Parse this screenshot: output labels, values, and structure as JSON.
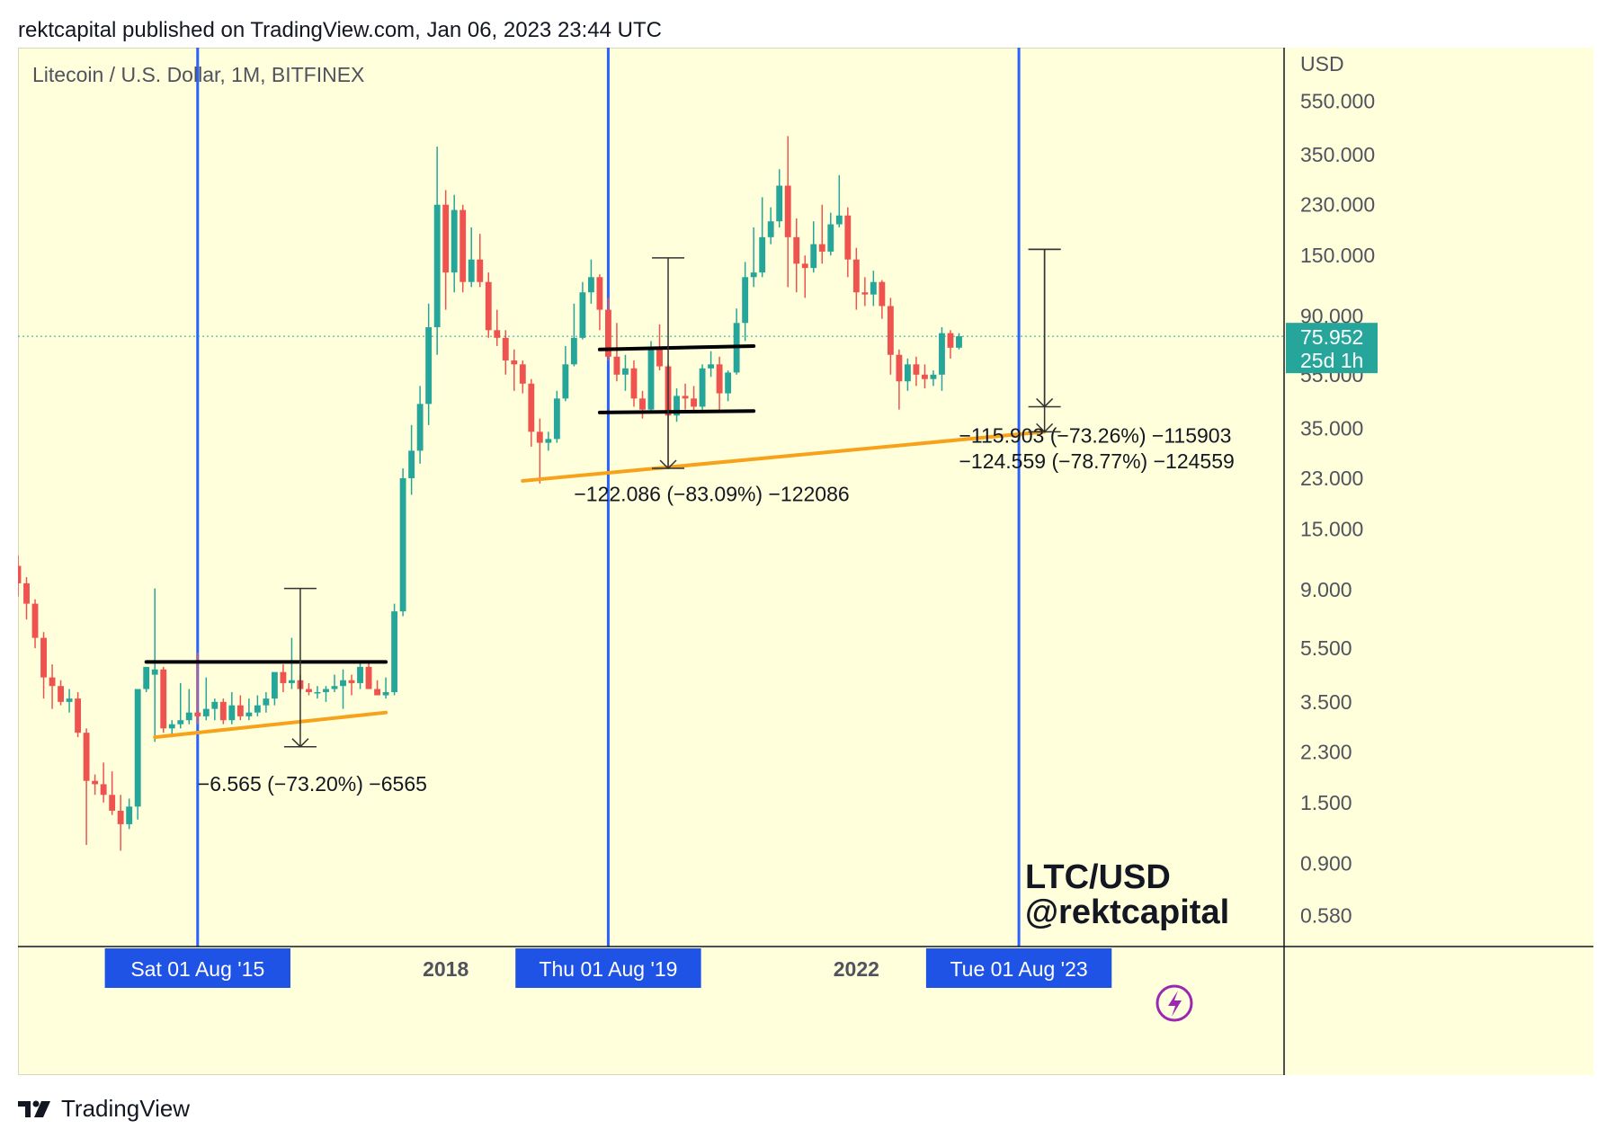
{
  "header": {
    "text": "rektcapital published on TradingView.com, Jan 06, 2023 23:44 UTC"
  },
  "footer": {
    "brand": "TradingView",
    "logo_icon": "tradingview-logo-icon"
  },
  "colors": {
    "up": "#26a69a",
    "down": "#ef5350",
    "background": "#ffffdb",
    "vline": "#2962ff",
    "trend": "#f7a21b",
    "label": "#1e53e5",
    "price_badge": "#26a69a"
  },
  "chart_data": {
    "type": "candlestick",
    "symbol": "Litecoin / U.S. Dollar, 1M, BITFINEX",
    "currency": "USD",
    "y_scale": "log",
    "y_range": [
      0.5,
      800
    ],
    "y_ticks": [
      "550.000",
      "350.000",
      "230.000",
      "150.000",
      "90.000",
      "55.000",
      "35.000",
      "23.000",
      "15.000",
      "9.000",
      "5.500",
      "3.500",
      "2.300",
      "1.500",
      "0.900",
      "0.580"
    ],
    "x_range_months": [
      "2013-11",
      "2026-03"
    ],
    "x_labels": [
      {
        "date": "2015-08",
        "text": "Sat 01 Aug '15",
        "highlight": true
      },
      {
        "date": "2018-01",
        "text": "2018",
        "highlight": false
      },
      {
        "date": "2019-08",
        "text": "Thu 01 Aug '19",
        "highlight": true
      },
      {
        "date": "2022-01",
        "text": "2022",
        "highlight": false
      },
      {
        "date": "2023-08",
        "text": "Tue 01 Aug '23",
        "highlight": true
      }
    ],
    "last_price": {
      "value": 75.952,
      "label": "75.952",
      "countdown": "25d 1h"
    },
    "vertical_lines": [
      "2015-08",
      "2019-08",
      "2023-08"
    ],
    "candles": [
      {
        "t": "2013-11",
        "o": 11,
        "h": 12,
        "l": 8.5,
        "c": 9.5
      },
      {
        "t": "2013-12",
        "o": 9.5,
        "h": 10,
        "l": 7,
        "c": 8
      },
      {
        "t": "2014-01",
        "o": 8,
        "h": 8.3,
        "l": 5.5,
        "c": 6
      },
      {
        "t": "2014-02",
        "o": 6,
        "h": 6.3,
        "l": 3.6,
        "c": 4.3
      },
      {
        "t": "2014-03",
        "o": 4.3,
        "h": 4.8,
        "l": 3.3,
        "c": 4
      },
      {
        "t": "2014-04",
        "o": 4,
        "h": 4.2,
        "l": 3.4,
        "c": 3.5
      },
      {
        "t": "2014-05",
        "o": 3.5,
        "h": 3.9,
        "l": 3.2,
        "c": 3.6
      },
      {
        "t": "2014-06",
        "o": 3.6,
        "h": 3.8,
        "l": 2.6,
        "c": 2.7
      },
      {
        "t": "2014-07",
        "o": 2.7,
        "h": 2.8,
        "l": 1.05,
        "c": 1.8
      },
      {
        "t": "2014-08",
        "o": 1.8,
        "h": 1.9,
        "l": 1.6,
        "c": 1.75
      },
      {
        "t": "2014-09",
        "o": 1.75,
        "h": 2.1,
        "l": 1.5,
        "c": 1.6
      },
      {
        "t": "2014-10",
        "o": 1.6,
        "h": 1.95,
        "l": 1.35,
        "c": 1.4
      },
      {
        "t": "2014-11",
        "o": 1.4,
        "h": 1.6,
        "l": 1.0,
        "c": 1.25
      },
      {
        "t": "2014-12",
        "o": 1.25,
        "h": 1.55,
        "l": 1.2,
        "c": 1.45
      },
      {
        "t": "2015-01",
        "o": 1.45,
        "h": 1.9,
        "l": 1.3,
        "c": 3.9
      },
      {
        "t": "2015-02",
        "o": 3.9,
        "h": 4.2,
        "l": 3.8,
        "c": 4.7
      },
      {
        "t": "2015-03",
        "o": 4.4,
        "h": 9.1,
        "l": 2.5,
        "c": 4.6
      },
      {
        "t": "2015-04",
        "o": 4.6,
        "h": 4.7,
        "l": 2.7,
        "c": 2.8
      },
      {
        "t": "2015-05",
        "o": 2.8,
        "h": 3.0,
        "l": 2.6,
        "c": 2.9
      },
      {
        "t": "2015-06",
        "o": 2.9,
        "h": 4.1,
        "l": 2.8,
        "c": 3.0
      },
      {
        "t": "2015-07",
        "o": 3.0,
        "h": 3.9,
        "l": 2.9,
        "c": 3.2
      },
      {
        "t": "2015-08",
        "o": 3.2,
        "h": 5.3,
        "l": 2.9,
        "c": 3.1
      },
      {
        "t": "2015-09",
        "o": 3.1,
        "h": 4.3,
        "l": 3.0,
        "c": 3.3
      },
      {
        "t": "2015-10",
        "o": 3.3,
        "h": 3.6,
        "l": 3.0,
        "c": 3.5
      },
      {
        "t": "2015-11",
        "o": 3.5,
        "h": 3.6,
        "l": 2.9,
        "c": 3.0
      },
      {
        "t": "2015-12",
        "o": 3.0,
        "h": 3.8,
        "l": 2.9,
        "c": 3.4
      },
      {
        "t": "2016-01",
        "o": 3.4,
        "h": 3.7,
        "l": 3.0,
        "c": 3.1
      },
      {
        "t": "2016-02",
        "o": 3.1,
        "h": 3.6,
        "l": 3.0,
        "c": 3.2
      },
      {
        "t": "2016-03",
        "o": 3.2,
        "h": 3.7,
        "l": 3.1,
        "c": 3.4
      },
      {
        "t": "2016-04",
        "o": 3.4,
        "h": 3.8,
        "l": 3.2,
        "c": 3.6
      },
      {
        "t": "2016-05",
        "o": 3.6,
        "h": 4.3,
        "l": 3.4,
        "c": 4.5
      },
      {
        "t": "2016-06",
        "o": 4.5,
        "h": 4.8,
        "l": 3.8,
        "c": 4.1
      },
      {
        "t": "2016-07",
        "o": 4.1,
        "h": 6.0,
        "l": 3.9,
        "c": 4.2
      },
      {
        "t": "2016-08",
        "o": 4.2,
        "h": 4.4,
        "l": 3.8,
        "c": 3.9
      },
      {
        "t": "2016-09",
        "o": 3.9,
        "h": 4.1,
        "l": 3.7,
        "c": 3.8
      },
      {
        "t": "2016-10",
        "o": 3.8,
        "h": 4.0,
        "l": 3.6,
        "c": 3.8
      },
      {
        "t": "2016-11",
        "o": 3.8,
        "h": 4.0,
        "l": 3.5,
        "c": 3.9
      },
      {
        "t": "2016-12",
        "o": 3.9,
        "h": 4.4,
        "l": 3.8,
        "c": 4.0
      },
      {
        "t": "2017-01",
        "o": 4.0,
        "h": 4.6,
        "l": 3.3,
        "c": 4.2
      },
      {
        "t": "2017-02",
        "o": 4.2,
        "h": 4.4,
        "l": 3.7,
        "c": 4.1
      },
      {
        "t": "2017-03",
        "o": 4.1,
        "h": 4.9,
        "l": 3.9,
        "c": 4.7
      },
      {
        "t": "2017-04",
        "o": 4.7,
        "h": 4.9,
        "l": 3.9,
        "c": 3.9
      },
      {
        "t": "2017-05",
        "o": 3.9,
        "h": 4.2,
        "l": 3.8,
        "c": 3.7
      },
      {
        "t": "2017-06",
        "o": 3.7,
        "h": 4.3,
        "l": 3.6,
        "c": 3.8
      },
      {
        "t": "2017-07",
        "o": 3.8,
        "h": 8.0,
        "l": 3.7,
        "c": 7.5
      },
      {
        "t": "2017-08",
        "o": 7.5,
        "h": 25,
        "l": 7.2,
        "c": 23
      },
      {
        "t": "2017-09",
        "o": 23,
        "h": 36,
        "l": 20,
        "c": 29
      },
      {
        "t": "2017-10",
        "o": 29,
        "h": 50,
        "l": 26,
        "c": 43
      },
      {
        "t": "2017-11",
        "o": 43,
        "h": 100,
        "l": 36,
        "c": 82
      },
      {
        "t": "2017-12",
        "o": 82,
        "h": 375,
        "l": 65,
        "c": 230
      },
      {
        "t": "2018-01",
        "o": 230,
        "h": 260,
        "l": 95,
        "c": 130
      },
      {
        "t": "2018-02",
        "o": 130,
        "h": 250,
        "l": 110,
        "c": 220
      },
      {
        "t": "2018-03",
        "o": 220,
        "h": 230,
        "l": 110,
        "c": 120
      },
      {
        "t": "2018-04",
        "o": 120,
        "h": 190,
        "l": 115,
        "c": 145
      },
      {
        "t": "2018-05",
        "o": 145,
        "h": 180,
        "l": 115,
        "c": 120
      },
      {
        "t": "2018-06",
        "o": 120,
        "h": 130,
        "l": 75,
        "c": 80
      },
      {
        "t": "2018-07",
        "o": 80,
        "h": 95,
        "l": 70,
        "c": 75
      },
      {
        "t": "2018-08",
        "o": 75,
        "h": 80,
        "l": 55,
        "c": 62
      },
      {
        "t": "2018-09",
        "o": 62,
        "h": 68,
        "l": 48,
        "c": 60
      },
      {
        "t": "2018-10",
        "o": 60,
        "h": 62,
        "l": 47,
        "c": 51
      },
      {
        "t": "2018-11",
        "o": 51,
        "h": 53,
        "l": 30,
        "c": 34
      },
      {
        "t": "2018-12",
        "o": 34,
        "h": 38,
        "l": 22,
        "c": 31
      },
      {
        "t": "2019-01",
        "o": 31,
        "h": 34,
        "l": 29,
        "c": 32
      },
      {
        "t": "2019-02",
        "o": 32,
        "h": 48,
        "l": 31,
        "c": 45
      },
      {
        "t": "2019-03",
        "o": 45,
        "h": 70,
        "l": 44,
        "c": 60
      },
      {
        "t": "2019-04",
        "o": 60,
        "h": 100,
        "l": 59,
        "c": 75
      },
      {
        "t": "2019-05",
        "o": 75,
        "h": 120,
        "l": 74,
        "c": 110
      },
      {
        "t": "2019-06",
        "o": 110,
        "h": 145,
        "l": 100,
        "c": 125
      },
      {
        "t": "2019-07",
        "o": 125,
        "h": 128,
        "l": 80,
        "c": 95
      },
      {
        "t": "2019-08",
        "o": 95,
        "h": 105,
        "l": 62,
        "c": 64
      },
      {
        "t": "2019-09",
        "o": 64,
        "h": 85,
        "l": 52,
        "c": 55
      },
      {
        "t": "2019-10",
        "o": 55,
        "h": 65,
        "l": 48,
        "c": 58
      },
      {
        "t": "2019-11",
        "o": 58,
        "h": 62,
        "l": 42,
        "c": 45
      },
      {
        "t": "2019-12",
        "o": 45,
        "h": 48,
        "l": 38,
        "c": 41
      },
      {
        "t": "2020-01",
        "o": 41,
        "h": 73,
        "l": 40,
        "c": 68
      },
      {
        "t": "2020-02",
        "o": 68,
        "h": 84,
        "l": 57,
        "c": 59
      },
      {
        "t": "2020-03",
        "o": 59,
        "h": 60,
        "l": 25,
        "c": 39
      },
      {
        "t": "2020-04",
        "o": 39,
        "h": 49,
        "l": 37,
        "c": 46
      },
      {
        "t": "2020-05",
        "o": 46,
        "h": 51,
        "l": 41,
        "c": 45
      },
      {
        "t": "2020-06",
        "o": 45,
        "h": 50,
        "l": 40,
        "c": 42
      },
      {
        "t": "2020-07",
        "o": 42,
        "h": 60,
        "l": 41,
        "c": 58
      },
      {
        "t": "2020-08",
        "o": 58,
        "h": 67,
        "l": 54,
        "c": 60
      },
      {
        "t": "2020-09",
        "o": 60,
        "h": 64,
        "l": 41,
        "c": 47
      },
      {
        "t": "2020-10",
        "o": 47,
        "h": 57,
        "l": 44,
        "c": 56
      },
      {
        "t": "2020-11",
        "o": 56,
        "h": 96,
        "l": 55,
        "c": 85
      },
      {
        "t": "2020-12",
        "o": 85,
        "h": 142,
        "l": 73,
        "c": 125
      },
      {
        "t": "2021-01",
        "o": 125,
        "h": 190,
        "l": 115,
        "c": 130
      },
      {
        "t": "2021-02",
        "o": 130,
        "h": 245,
        "l": 125,
        "c": 175
      },
      {
        "t": "2021-03",
        "o": 175,
        "h": 225,
        "l": 165,
        "c": 200
      },
      {
        "t": "2021-04",
        "o": 200,
        "h": 310,
        "l": 190,
        "c": 270
      },
      {
        "t": "2021-05",
        "o": 270,
        "h": 410,
        "l": 115,
        "c": 175
      },
      {
        "t": "2021-06",
        "o": 175,
        "h": 205,
        "l": 110,
        "c": 140
      },
      {
        "t": "2021-07",
        "o": 140,
        "h": 150,
        "l": 105,
        "c": 135
      },
      {
        "t": "2021-08",
        "o": 135,
        "h": 200,
        "l": 130,
        "c": 165
      },
      {
        "t": "2021-09",
        "o": 165,
        "h": 230,
        "l": 140,
        "c": 155
      },
      {
        "t": "2021-10",
        "o": 155,
        "h": 215,
        "l": 150,
        "c": 195
      },
      {
        "t": "2021-11",
        "o": 195,
        "h": 295,
        "l": 190,
        "c": 210
      },
      {
        "t": "2021-12",
        "o": 210,
        "h": 225,
        "l": 125,
        "c": 145
      },
      {
        "t": "2022-01",
        "o": 145,
        "h": 160,
        "l": 95,
        "c": 110
      },
      {
        "t": "2022-02",
        "o": 110,
        "h": 125,
        "l": 98,
        "c": 108
      },
      {
        "t": "2022-03",
        "o": 108,
        "h": 132,
        "l": 98,
        "c": 120
      },
      {
        "t": "2022-04",
        "o": 120,
        "h": 122,
        "l": 88,
        "c": 98
      },
      {
        "t": "2022-05",
        "o": 98,
        "h": 105,
        "l": 55,
        "c": 65
      },
      {
        "t": "2022-06",
        "o": 65,
        "h": 68,
        "l": 41,
        "c": 52
      },
      {
        "t": "2022-07",
        "o": 52,
        "h": 63,
        "l": 48,
        "c": 60
      },
      {
        "t": "2022-08",
        "o": 60,
        "h": 64,
        "l": 50,
        "c": 55
      },
      {
        "t": "2022-09",
        "o": 55,
        "h": 60,
        "l": 49,
        "c": 53
      },
      {
        "t": "2022-10",
        "o": 53,
        "h": 57,
        "l": 50,
        "c": 55
      },
      {
        "t": "2022-11",
        "o": 55,
        "h": 82,
        "l": 48,
        "c": 78
      },
      {
        "t": "2022-12",
        "o": 78,
        "h": 80,
        "l": 63,
        "c": 69
      },
      {
        "t": "2023-01",
        "o": 69,
        "h": 78,
        "l": 68,
        "c": 76
      }
    ],
    "trendlines": [
      {
        "from": [
          "2015-03",
          2.6
        ],
        "to": [
          "2017-06",
          3.2
        ],
        "color": "orange"
      },
      {
        "from": [
          "2018-10",
          22.5
        ],
        "to": [
          "2023-11",
          34
        ],
        "color": "orange"
      }
    ],
    "range_lines": [
      {
        "from": [
          "2015-02",
          4.9
        ],
        "to": [
          "2017-06",
          4.9
        ]
      },
      {
        "from": [
          "2019-07",
          68
        ],
        "to": [
          "2021-01",
          70
        ]
      },
      {
        "from": [
          "2019-07",
          40
        ],
        "to": [
          "2021-01",
          40.5
        ]
      }
    ],
    "measure_tools": [
      {
        "at": "2016-08",
        "top": 9.1,
        "bottom": 2.4,
        "label": "−6.565 (−73.20%) −6565",
        "label_at": [
          "2015-08",
          1.65
        ]
      },
      {
        "at": "2020-03",
        "top": 147,
        "bottom": 25,
        "label": "−122.086 (−83.09%) −122086",
        "label_at": [
          "2019-04",
          19
        ]
      },
      {
        "at": "2023-11",
        "top": 158,
        "bottom": 42,
        "label": "−115.903 (−73.26%) −115903",
        "label_at": [
          "2023-01",
          31
        ]
      },
      {
        "at": "2023-11",
        "top": 158,
        "bottom": 34,
        "label": "−124.559 (−78.77%) −124559",
        "label_at": [
          "2023-01",
          25
        ]
      }
    ],
    "watermark": {
      "line1": "LTC/USD",
      "line2": "@rektcapital"
    }
  }
}
